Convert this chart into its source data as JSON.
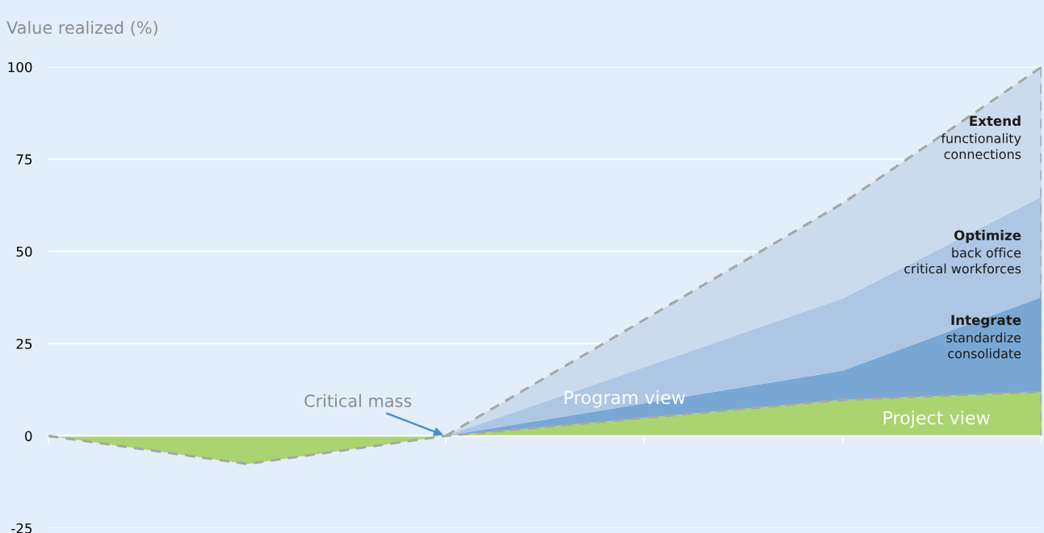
{
  "chart_data": {
    "type": "area",
    "stacked": true,
    "title": "Value realized (%)",
    "categories": [
      null,
      null,
      null,
      null,
      null,
      null
    ],
    "series": [
      {
        "color": "#a9d46f",
        "values": [
          0,
          -7.6,
          0,
          4.9,
          9.8,
          12.0
        ],
        "line_style": "dashed"
      },
      {
        "color": "#78a7d4",
        "values": [
          null,
          null,
          0,
          3.9,
          7.9,
          25.6
        ]
      },
      {
        "color": "#adc6e4",
        "values": [
          null,
          null,
          0,
          9.8,
          19.6,
          27.2
        ]
      },
      {
        "color": "#cbdbee",
        "values": [
          null,
          null,
          0,
          12.9,
          25.8,
          35.2
        ],
        "line_style": "dashed"
      }
    ],
    "ylim": [
      -25,
      100
    ],
    "yticks": [
      -25,
      0,
      25,
      50,
      75,
      100
    ],
    "grid": "y",
    "tick_labels": "y",
    "annotations": [
      "Critical mass",
      "Program view",
      "Project view",
      "Extend\nfunctionality\nconnections",
      "Optimize\nback office\ncritical workforces",
      "Integrate\nstandardize\nconsolidate"
    ]
  }
}
